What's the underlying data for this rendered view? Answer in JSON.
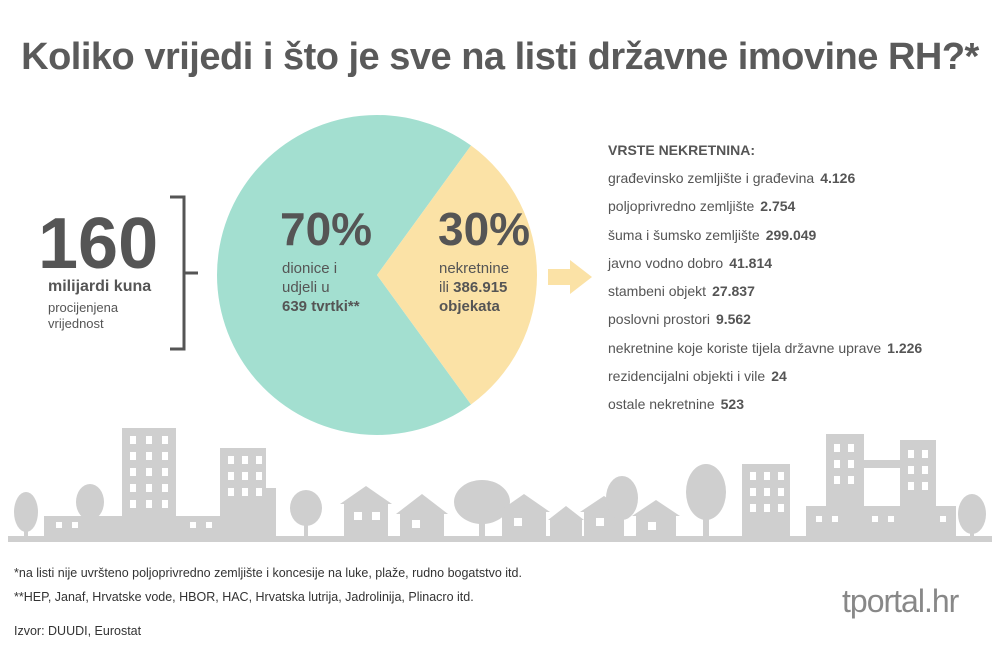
{
  "title": "Koliko vrijedi i što je sve na listi državne imovine RH?*",
  "total": {
    "value": "160",
    "unit": "milijardi kuna",
    "description": "procijenjena vrijednost"
  },
  "pie": {
    "left": {
      "percent": "70%",
      "line1": "dionice i",
      "line2": "udjeli u",
      "line3": "639 tvrtki**"
    },
    "right": {
      "percent": "30%",
      "line1": "nekretnine",
      "line2_prefix": "ili",
      "line2_value": "386.915",
      "line3": "objekata"
    }
  },
  "list": {
    "title": "VRSTE NEKRETNINA:",
    "items": [
      {
        "label": "građevinsko zemljište i građevina",
        "value": "4.126"
      },
      {
        "label": "poljoprivredno zemljište",
        "value": "2.754"
      },
      {
        "label": "šuma i šumsko zemljište",
        "value": "299.049"
      },
      {
        "label": "javno vodno dobro",
        "value": "41.814"
      },
      {
        "label": "stambeni objekt",
        "value": "27.837"
      },
      {
        "label": "poslovni prostori",
        "value": "9.562"
      },
      {
        "label": "nekretnine koje koriste tijela državne uprave",
        "value": "1.226"
      },
      {
        "label": "rezidencijalni objekti i vile",
        "value": "24"
      },
      {
        "label": "ostale nekretnine",
        "value": "523"
      }
    ]
  },
  "footnotes": {
    "note1": "*na listi nije uvršteno poljoprivredno zemljište i koncesije na luke, plaže, rudno bogatstvo itd.",
    "note2": "**HEP, Janaf, Hrvatske vode, HBOR, HAC, Hrvatska lutrija, Jadrolinija, Plinacro itd.",
    "source": "Izvor: DUUDI, Eurostat"
  },
  "logo": "tportal.hr",
  "colors": {
    "pie_left": "#a3dfd0",
    "pie_right": "#fbe2a6",
    "text": "#555555",
    "skyline": "#cfcfcf",
    "arrow": "#fbe2a6"
  },
  "chart_data": {
    "type": "pie",
    "categories": [
      "dionice i udjeli u 639 tvrtki**",
      "nekretnine ili 386.915 objekata"
    ],
    "values": [
      70,
      30
    ],
    "title": "Koliko vrijedi i što je sve na listi državne imovine RH?*"
  }
}
